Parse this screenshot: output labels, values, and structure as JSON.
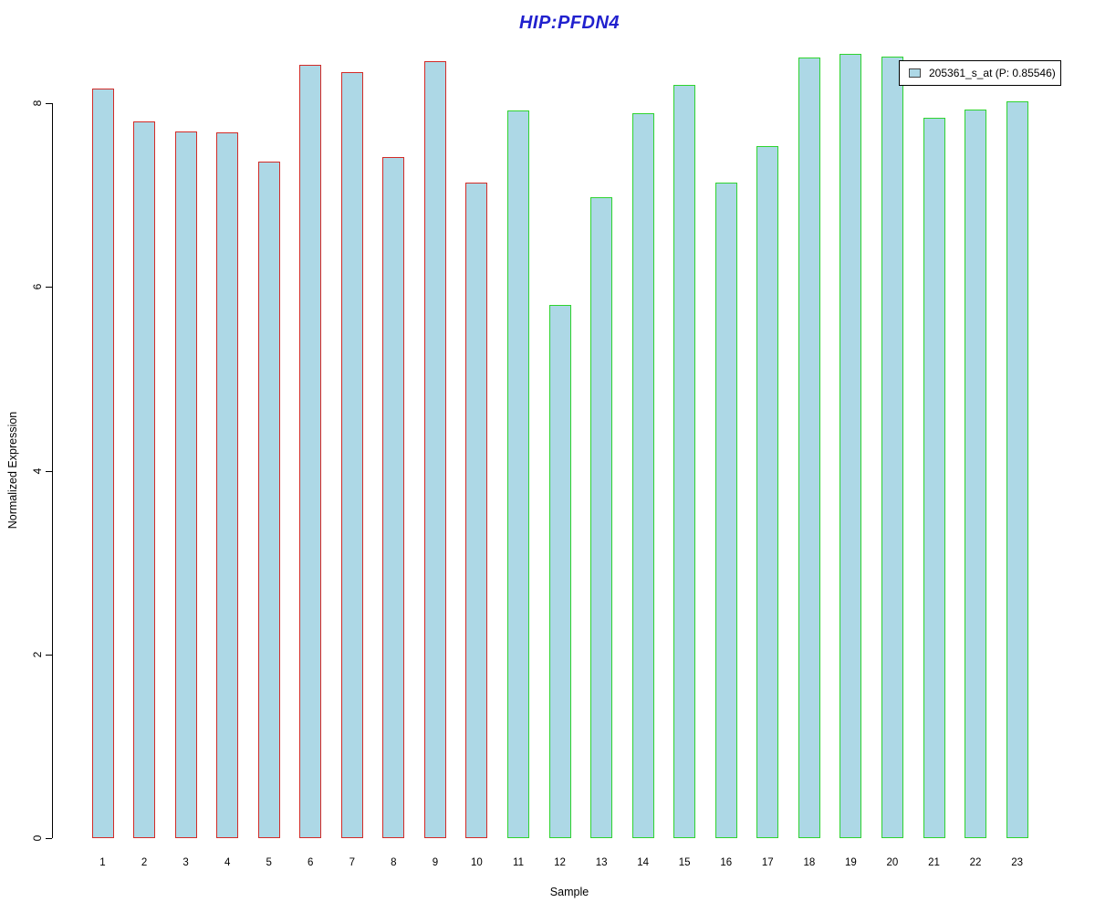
{
  "chart_data": {
    "type": "bar",
    "title": "HIP:PFDN4",
    "title_color": "#2121CE",
    "xlabel": "Sample",
    "ylabel": "Normalized Expression",
    "categories": [
      "1",
      "2",
      "3",
      "4",
      "5",
      "6",
      "7",
      "8",
      "9",
      "10",
      "11",
      "12",
      "13",
      "14",
      "15",
      "16",
      "17",
      "18",
      "19",
      "20",
      "21",
      "22",
      "23"
    ],
    "values": [
      8.16,
      7.8,
      7.69,
      7.68,
      7.37,
      8.42,
      8.34,
      7.42,
      8.46,
      7.14,
      7.92,
      5.81,
      6.98,
      7.89,
      8.2,
      7.14,
      7.53,
      8.5,
      8.54,
      8.51,
      7.84,
      7.93,
      8.02
    ],
    "ylim": [
      0,
      8.6
    ],
    "yticks": [
      0,
      2,
      4,
      6,
      8
    ],
    "grid": false,
    "bar_fill": "#ADD8E6",
    "group_split_index": 10,
    "group_border_colors": [
      "#D22B27",
      "#2FD32F"
    ],
    "legend": {
      "label": "205361_s_at (P: 0.85546)",
      "position": "top-right",
      "swatch_fill": "#ADD8E6",
      "swatch_border": "#444444"
    }
  }
}
